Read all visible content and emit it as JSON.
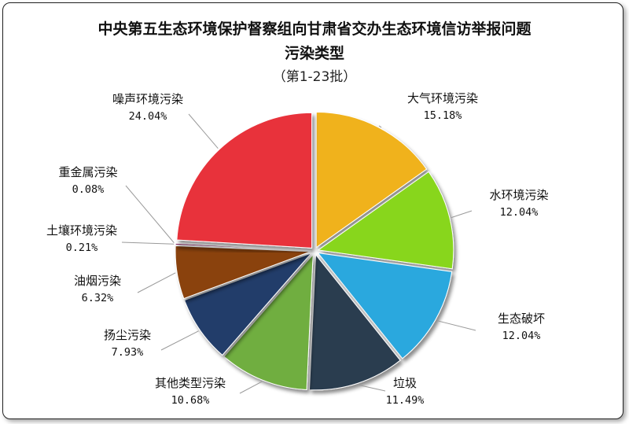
{
  "title": "中央第五生态环境保护督察组向甘肃省交办生态环境信访举报问题",
  "subtitle": "污染类型",
  "batch": "（第1-23批）",
  "chart_data": {
    "type": "pie",
    "title": "中央第五生态环境保护督察组向甘肃省交办生态环境信访举报问题",
    "subtitle": "污染类型",
    "slices": [
      {
        "label": "大气环境污染",
        "value": 15.18,
        "value_text": "15.18%",
        "color": "#f0b21e"
      },
      {
        "label": "水环境污染",
        "value": 12.04,
        "value_text": "12.04%",
        "color": "#88d61f"
      },
      {
        "label": "生态破坏",
        "value": 12.04,
        "value_text": "12.04%",
        "color": "#2aa8de"
      },
      {
        "label": "垃圾",
        "value": 11.49,
        "value_text": "11.49%",
        "color": "#2b3c50"
      },
      {
        "label": "其他类型污染",
        "value": 10.68,
        "value_text": "10.68%",
        "color": "#6fae3f"
      },
      {
        "label": "扬尘污染",
        "value": 7.93,
        "value_text": "7.93%",
        "color": "#203e6a"
      },
      {
        "label": "油烟污染",
        "value": 6.32,
        "value_text": "6.32%",
        "color": "#8a4310"
      },
      {
        "label": "土壤环境污染",
        "value": 0.21,
        "value_text": "0.21%",
        "color": "#8a2f6a"
      },
      {
        "label": "重金属污染",
        "value": 0.08,
        "value_text": "0.08%",
        "color": "#5b8fc4"
      },
      {
        "label": "噪声环境污染",
        "value": 24.04,
        "value_text": "24.04%",
        "color": "#e8313a"
      }
    ]
  }
}
